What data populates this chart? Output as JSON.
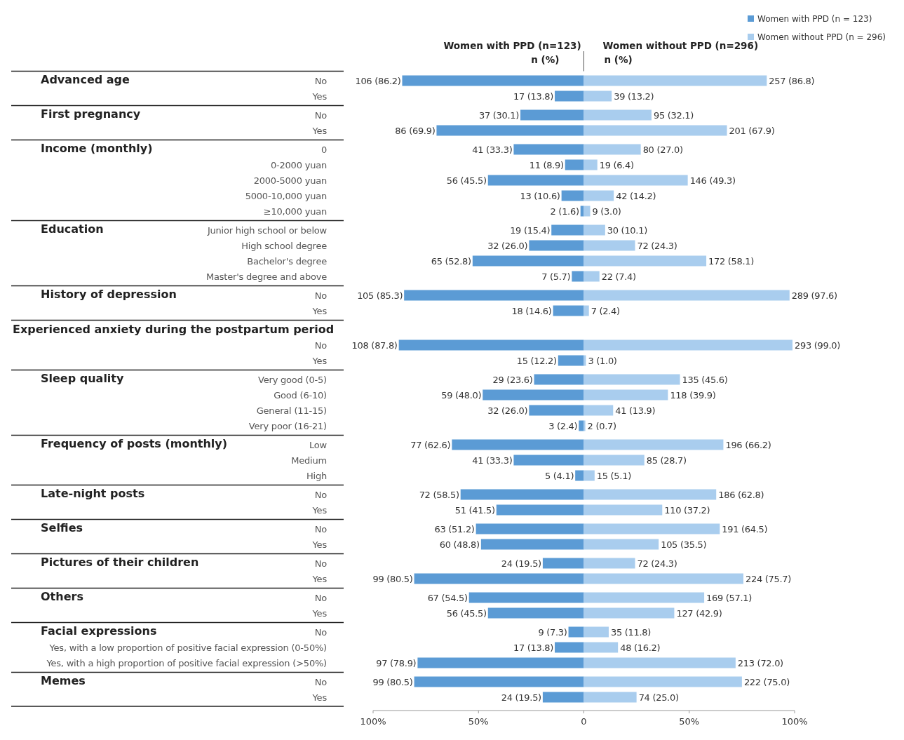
{
  "chart_data": [
    {
      "type": "bar",
      "orientation": "horizontal",
      "ylabel": "Advanced age",
      "categories": [
        "No",
        "Yes"
      ],
      "xlim": [
        -100,
        100
      ],
      "tick_labels": "y",
      "legend": "top right",
      "annotations": [
        "Women with PPD (n=123)",
        "n (%)",
        "Women without PPD (n=296)",
        "n (%)"
      ],
      "series": [
        {
          "name": "Women with PPD (n = 123)",
          "color": "#5b9bd5",
          "base": [
            -86.2,
            -13.8
          ],
          "values": [
            86.2,
            13.8
          ],
          "value_labels": [
            "106 (86.2)",
            "17 (13.8)"
          ]
        },
        {
          "name": "Women without PPD (n = 296)",
          "color": "#a9cdee",
          "values": [
            86.8,
            13.2
          ],
          "value_labels": [
            "257 (86.8)",
            "39 (13.2)"
          ]
        }
      ]
    },
    {
      "type": "bar",
      "orientation": "horizontal",
      "ylabel": "First pregnancy",
      "categories": [
        "No",
        "Yes"
      ],
      "xlim": [
        -100,
        100
      ],
      "tick_labels": "y",
      "series": [
        {
          "color": "#5b9bd5",
          "base": [
            -30.1,
            -69.9
          ],
          "values": [
            30.1,
            69.9
          ],
          "value_labels": [
            "37 (30.1)",
            "86 (69.9)"
          ]
        },
        {
          "color": "#a9cdee",
          "values": [
            32.1,
            67.9
          ],
          "value_labels": [
            "95 (32.1)",
            "201 (67.9)"
          ]
        }
      ]
    },
    {
      "type": "bar",
      "orientation": "horizontal",
      "ylabel": "Income (monthly)",
      "categories": [
        "0",
        "0-2000 yuan",
        "2000-5000 yuan",
        "5000-10,000 yuan",
        "≥10,000 yuan"
      ],
      "xlim": [
        -100,
        100
      ],
      "tick_labels": "y",
      "series": [
        {
          "color": "#5b9bd5",
          "base": [
            -33.3,
            -8.9,
            -45.5,
            -10.6,
            -1.6
          ],
          "values": [
            33.3,
            8.9,
            45.5,
            10.6,
            1.6
          ],
          "value_labels": [
            "41 (33.3)",
            "11 (8.9)",
            "56 (45.5)",
            "13 (10.6)",
            "2 (1.6)"
          ]
        },
        {
          "color": "#a9cdee",
          "values": [
            27.0,
            6.4,
            49.3,
            14.2,
            3.0
          ],
          "value_labels": [
            "80 (27.0)",
            "19 (6.4)",
            "146 (49.3)",
            "42 (14.2)",
            "9 (3.0)"
          ]
        }
      ]
    },
    {
      "type": "bar",
      "orientation": "horizontal",
      "ylabel": "Education",
      "categories": [
        "Junior high school or below",
        "High school degree",
        "Bachelor's degree",
        "Master's degree and above"
      ],
      "xlim": [
        -100,
        100
      ],
      "tick_labels": "y",
      "series": [
        {
          "color": "#5b9bd5",
          "base": [
            -15.4,
            -26.0,
            -52.8,
            -5.7
          ],
          "values": [
            15.4,
            26.0,
            52.8,
            5.7
          ],
          "value_labels": [
            "19 (15.4)",
            "32 (26.0)",
            "65 (52.8)",
            "7 (5.7)"
          ]
        },
        {
          "color": "#a9cdee",
          "values": [
            10.1,
            24.3,
            58.1,
            7.4
          ],
          "value_labels": [
            "30 (10.1)",
            "72 (24.3)",
            "172 (58.1)",
            "22 (7.4)"
          ]
        }
      ]
    },
    {
      "type": "bar",
      "orientation": "horizontal",
      "ylabel": "History of depression",
      "categories": [
        "No",
        "Yes"
      ],
      "xlim": [
        -100,
        100
      ],
      "tick_labels": "y",
      "series": [
        {
          "color": "#5b9bd5",
          "base": [
            -85.3,
            -14.6
          ],
          "values": [
            85.3,
            14.6
          ],
          "value_labels": [
            "105 (85.3)",
            "18 (14.6)"
          ]
        },
        {
          "color": "#a9cdee",
          "values": [
            97.6,
            2.4
          ],
          "value_labels": [
            "289 (97.6)",
            "7 (2.4)"
          ]
        }
      ]
    },
    {
      "type": "bar",
      "orientation": "horizontal",
      "ylabel": "Experienced anxiety during the postpartum period",
      "categories": [
        "No",
        "Yes"
      ],
      "xlim": [
        -100,
        100
      ],
      "tick_labels": "y",
      "series": [
        {
          "color": "#5b9bd5",
          "base": [
            -87.8,
            -12.2
          ],
          "values": [
            87.8,
            12.2
          ],
          "value_labels": [
            "108 (87.8)",
            "15 (12.2)"
          ]
        },
        {
          "color": "#a9cdee",
          "values": [
            99.0,
            1.0
          ],
          "value_labels": [
            "293 (99.0)",
            "3 (1.0)"
          ]
        }
      ]
    },
    {
      "type": "bar",
      "orientation": "horizontal",
      "ylabel": "Sleep quality",
      "categories": [
        "Very good (0-5)",
        "Good (6-10)",
        "General (11-15)",
        "Very poor (16-21)"
      ],
      "xlim": [
        -100,
        100
      ],
      "tick_labels": "y",
      "series": [
        {
          "color": "#5b9bd5",
          "base": [
            -23.6,
            -48.0,
            -26.0,
            -2.4
          ],
          "values": [
            23.6,
            48.0,
            26.0,
            2.4
          ],
          "value_labels": [
            "29 (23.6)",
            "59 (48.0)",
            "32 (26.0)",
            "3 (2.4)"
          ]
        },
        {
          "color": "#a9cdee",
          "values": [
            45.6,
            39.9,
            13.9,
            0.7
          ],
          "value_labels": [
            "135 (45.6)",
            "118 (39.9)",
            "41 (13.9)",
            "2 (0.7)"
          ]
        }
      ]
    },
    {
      "type": "bar",
      "orientation": "horizontal",
      "ylabel": "Frequency of posts (monthly)",
      "categories": [
        "Low",
        "Medium",
        "High"
      ],
      "xlim": [
        -100,
        100
      ],
      "tick_labels": "y",
      "series": [
        {
          "color": "#5b9bd5",
          "base": [
            -62.6,
            -33.3,
            -4.1
          ],
          "values": [
            62.6,
            33.3,
            4.1
          ],
          "value_labels": [
            "77 (62.6)",
            "41 (33.3)",
            "5 (4.1)"
          ]
        },
        {
          "color": "#a9cdee",
          "values": [
            66.2,
            28.7,
            5.1
          ],
          "value_labels": [
            "196 (66.2)",
            "85 (28.7)",
            "15 (5.1)"
          ]
        }
      ]
    },
    {
      "type": "bar",
      "orientation": "horizontal",
      "ylabel": "Late-night posts",
      "categories": [
        "No",
        "Yes"
      ],
      "xlim": [
        -100,
        100
      ],
      "tick_labels": "y",
      "series": [
        {
          "color": "#5b9bd5",
          "base": [
            -58.5,
            -41.5
          ],
          "values": [
            58.5,
            41.5
          ],
          "value_labels": [
            "72 (58.5)",
            "51 (41.5)"
          ]
        },
        {
          "color": "#a9cdee",
          "values": [
            62.8,
            37.2
          ],
          "value_labels": [
            "186 (62.8)",
            "110 (37.2)"
          ]
        }
      ]
    },
    {
      "type": "bar",
      "orientation": "horizontal",
      "ylabel": "Selfies",
      "categories": [
        "No",
        "Yes"
      ],
      "xlim": [
        -100,
        100
      ],
      "tick_labels": "y",
      "series": [
        {
          "color": "#5b9bd5",
          "base": [
            -51.2,
            -48.8
          ],
          "values": [
            51.2,
            48.8
          ],
          "value_labels": [
            "63 (51.2)",
            "60 (48.8)"
          ]
        },
        {
          "color": "#a9cdee",
          "values": [
            64.5,
            35.5
          ],
          "value_labels": [
            "191 (64.5)",
            "105 (35.5)"
          ]
        }
      ]
    },
    {
      "type": "bar",
      "orientation": "horizontal",
      "ylabel": "Pictures of their children",
      "categories": [
        "No",
        "Yes"
      ],
      "xlim": [
        -100,
        100
      ],
      "tick_labels": "y",
      "series": [
        {
          "color": "#5b9bd5",
          "base": [
            -19.5,
            -80.5
          ],
          "values": [
            19.5,
            80.5
          ],
          "value_labels": [
            "24 (19.5)",
            "99 (80.5)"
          ]
        },
        {
          "color": "#a9cdee",
          "values": [
            24.3,
            75.7
          ],
          "value_labels": [
            "72 (24.3)",
            "224 (75.7)"
          ]
        }
      ]
    },
    {
      "type": "bar",
      "orientation": "horizontal",
      "ylabel": "Others",
      "categories": [
        "No",
        "Yes"
      ],
      "xlim": [
        -100,
        100
      ],
      "tick_labels": "y",
      "series": [
        {
          "color": "#5b9bd5",
          "base": [
            -54.5,
            -45.5
          ],
          "values": [
            54.5,
            45.5
          ],
          "value_labels": [
            "67 (54.5)",
            "56 (45.5)"
          ]
        },
        {
          "color": "#a9cdee",
          "values": [
            57.1,
            42.9
          ],
          "value_labels": [
            "169 (57.1)",
            "127 (42.9)"
          ]
        }
      ]
    },
    {
      "type": "bar",
      "orientation": "horizontal",
      "ylabel": "Facial expressions",
      "categories": [
        "No",
        "Yes, with a low proportion of positive facial expression (0-50%)",
        "Yes, with a high proportion of positive facial expression (>50%)"
      ],
      "xlim": [
        -100,
        100
      ],
      "tick_labels": "y",
      "series": [
        {
          "color": "#5b9bd5",
          "base": [
            -7.3,
            -13.8,
            -78.9
          ],
          "values": [
            7.3,
            13.8,
            78.9
          ],
          "value_labels": [
            "9 (7.3)",
            "17 (13.8)",
            "97 (78.9)"
          ]
        },
        {
          "color": "#a9cdee",
          "values": [
            11.8,
            16.2,
            72.0
          ],
          "value_labels": [
            "35 (11.8)",
            "48 (16.2)",
            "213 (72.0)"
          ]
        }
      ]
    },
    {
      "type": "bar",
      "orientation": "horizontal",
      "ylabel": "Memes",
      "categories": [
        "No",
        "Yes"
      ],
      "xlim": [
        -100,
        100
      ],
      "xticks": [
        {
          "value": -100,
          "label": "100%"
        },
        {
          "value": -50,
          "label": "50%"
        },
        0,
        {
          "value": 50,
          "label": "50%"
        },
        {
          "value": 100,
          "label": "100%"
        }
      ],
      "series": [
        {
          "color": "#5b9bd5",
          "base": [
            -80.5,
            -19.5
          ],
          "values": [
            80.5,
            19.5
          ],
          "value_labels": [
            "99 (80.5)",
            "24 (19.5)"
          ]
        },
        {
          "color": "#a9cdee",
          "values": [
            75.0,
            25.0
          ],
          "value_labels": [
            "222 (75.0)",
            "74 (25.0)"
          ]
        }
      ]
    }
  ]
}
